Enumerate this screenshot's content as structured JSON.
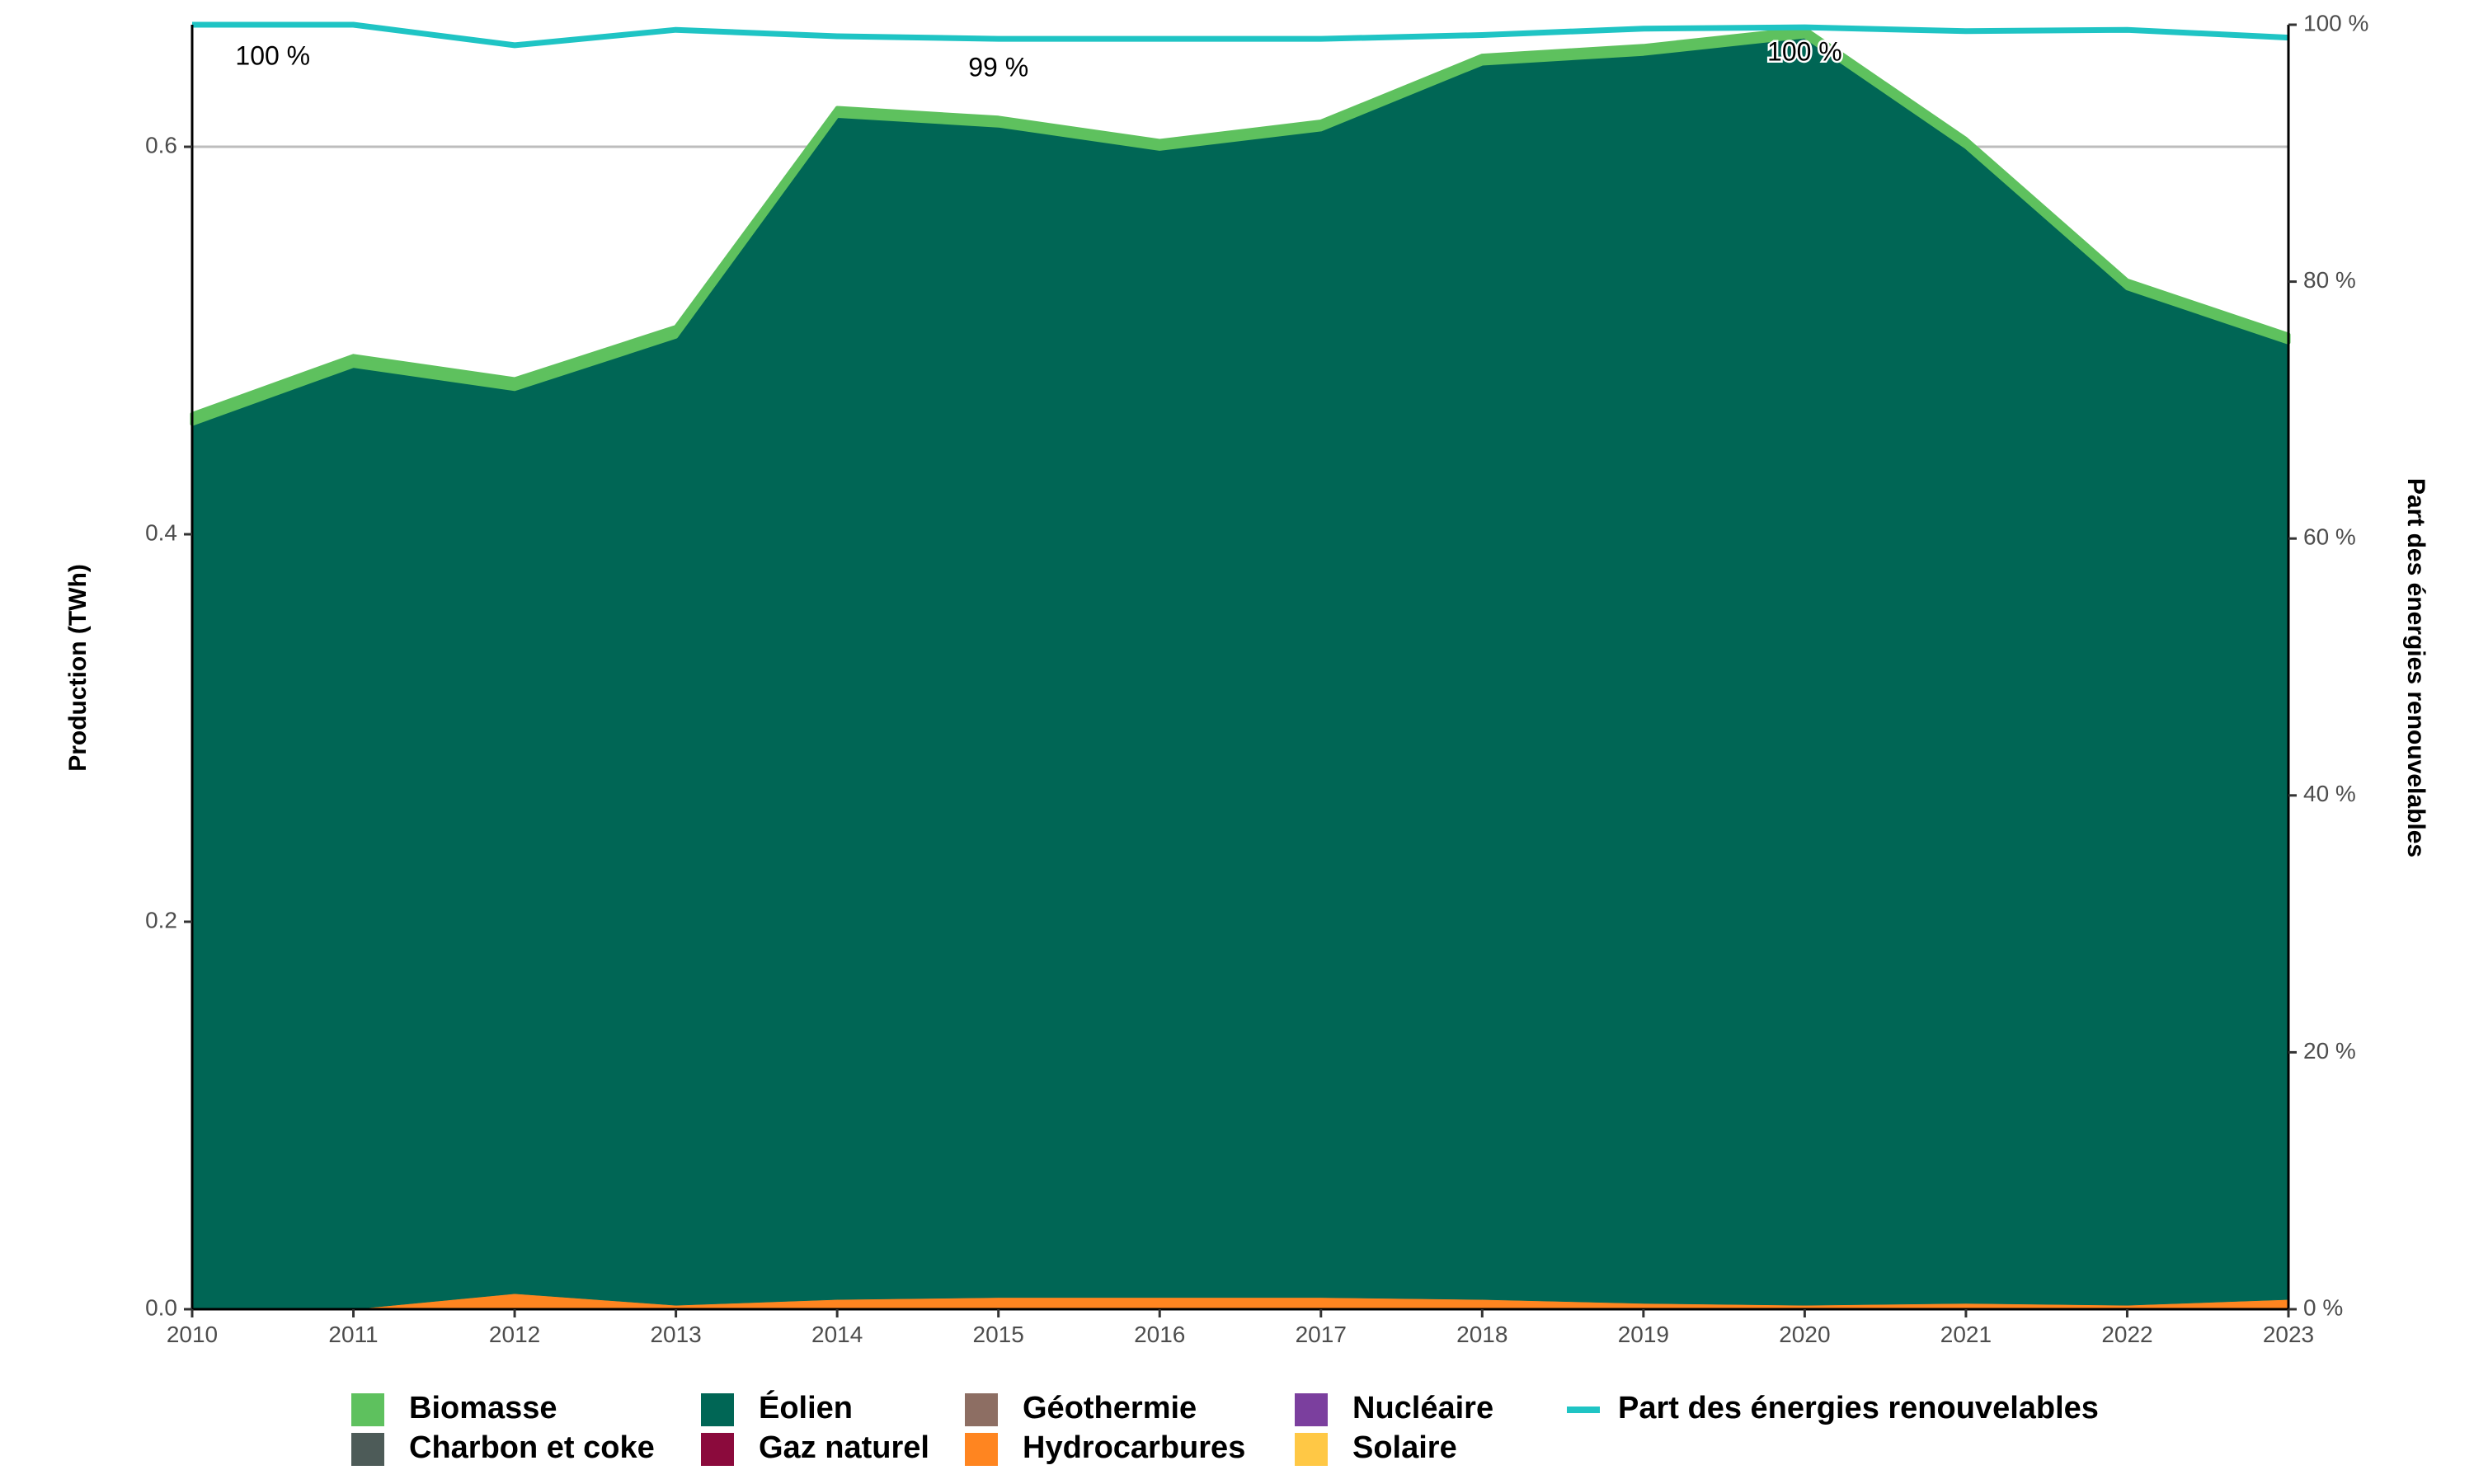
{
  "chart_data": {
    "type": "area",
    "x": [
      2010,
      2011,
      2012,
      2013,
      2014,
      2015,
      2016,
      2017,
      2018,
      2019,
      2020,
      2021,
      2022,
      2023
    ],
    "stack_order": [
      "hydrocarbures",
      "eolien",
      "biomasse"
    ],
    "series": [
      {
        "key": "biomasse",
        "name": "Biomasse",
        "color": "#5ec15e",
        "values": [
          0.005,
          0.005,
          0.005,
          0.005,
          0.004,
          0.004,
          0.004,
          0.004,
          0.004,
          0.004,
          0.004,
          0.004,
          0.004,
          0.004
        ]
      },
      {
        "key": "charbon",
        "name": "Charbon et coke",
        "color": "#4d5b58",
        "values": [
          0,
          0,
          0,
          0,
          0,
          0,
          0,
          0,
          0,
          0,
          0,
          0,
          0,
          0
        ]
      },
      {
        "key": "eolien",
        "name": "Éolien",
        "color": "#006655",
        "values": [
          0.457,
          0.487,
          0.467,
          0.5,
          0.611,
          0.605,
          0.593,
          0.603,
          0.638,
          0.645,
          0.655,
          0.597,
          0.525,
          0.494
        ]
      },
      {
        "key": "gaz",
        "name": "Gaz naturel",
        "color": "#8b0a3c",
        "values": [
          0,
          0,
          0,
          0,
          0,
          0,
          0,
          0,
          0,
          0,
          0,
          0,
          0,
          0
        ]
      },
      {
        "key": "geothermie",
        "name": "Géothermie",
        "color": "#8d6e63",
        "values": [
          0,
          0,
          0,
          0,
          0,
          0,
          0,
          0,
          0,
          0,
          0,
          0,
          0,
          0
        ]
      },
      {
        "key": "hydrocarbures",
        "name": "Hydrocarbures",
        "color": "#ff8520",
        "values": [
          0.0,
          0.0,
          0.008,
          0.002,
          0.005,
          0.006,
          0.006,
          0.006,
          0.005,
          0.003,
          0.002,
          0.003,
          0.002,
          0.005
        ]
      },
      {
        "key": "nucleaire",
        "name": "Nucléaire",
        "color": "#7b3f9e",
        "values": [
          0,
          0,
          0,
          0,
          0,
          0,
          0,
          0,
          0,
          0,
          0,
          0,
          0,
          0
        ]
      },
      {
        "key": "solaire",
        "name": "Solaire",
        "color": "#ffc845",
        "values": [
          0,
          0,
          0,
          0,
          0,
          0,
          0,
          0,
          0,
          0,
          0,
          0,
          0,
          0
        ]
      }
    ],
    "share_line": {
      "name": "Part des énergies renouvelables",
      "color": "#1fc4c4",
      "values": [
        100,
        100,
        98.4,
        99.6,
        99.1,
        98.9,
        98.9,
        98.9,
        99.2,
        99.7,
        99.8,
        99.5,
        99.6,
        99.0
      ]
    },
    "annotations": [
      {
        "x": 2010.5,
        "y": 0.646,
        "text": "100 %"
      },
      {
        "x": 2015,
        "y": 0.64,
        "text": "99 %"
      },
      {
        "x": 2020,
        "y": 0.648,
        "text": "100 %"
      }
    ],
    "ylabel": "Production (TWh)",
    "y2label": "Part des énergies renouvelables",
    "ylim": [
      0,
      0.663
    ],
    "y2lim": [
      0,
      100
    ],
    "yticks": [
      "0.0",
      "0.2",
      "0.4",
      "0.6"
    ],
    "yticks_values": [
      0,
      0.2,
      0.4,
      0.6
    ],
    "y2ticks": [
      "0 %",
      "20 %",
      "40 %",
      "60 %",
      "80 %",
      "100 %"
    ],
    "y2ticks_values": [
      0,
      20,
      40,
      60,
      80,
      100
    ],
    "xticks": [
      "2010",
      "2011",
      "2012",
      "2013",
      "2014",
      "2015",
      "2016",
      "2017",
      "2018",
      "2019",
      "2020",
      "2021",
      "2022",
      "2023"
    ],
    "gridline_at": 0.6,
    "legend_position": "bottom",
    "legend_columns": [
      [
        "biomasse",
        "charbon"
      ],
      [
        "eolien",
        "gaz"
      ],
      [
        "geothermie",
        "hydrocarbures"
      ],
      [
        "nucleaire",
        "solaire"
      ]
    ]
  }
}
